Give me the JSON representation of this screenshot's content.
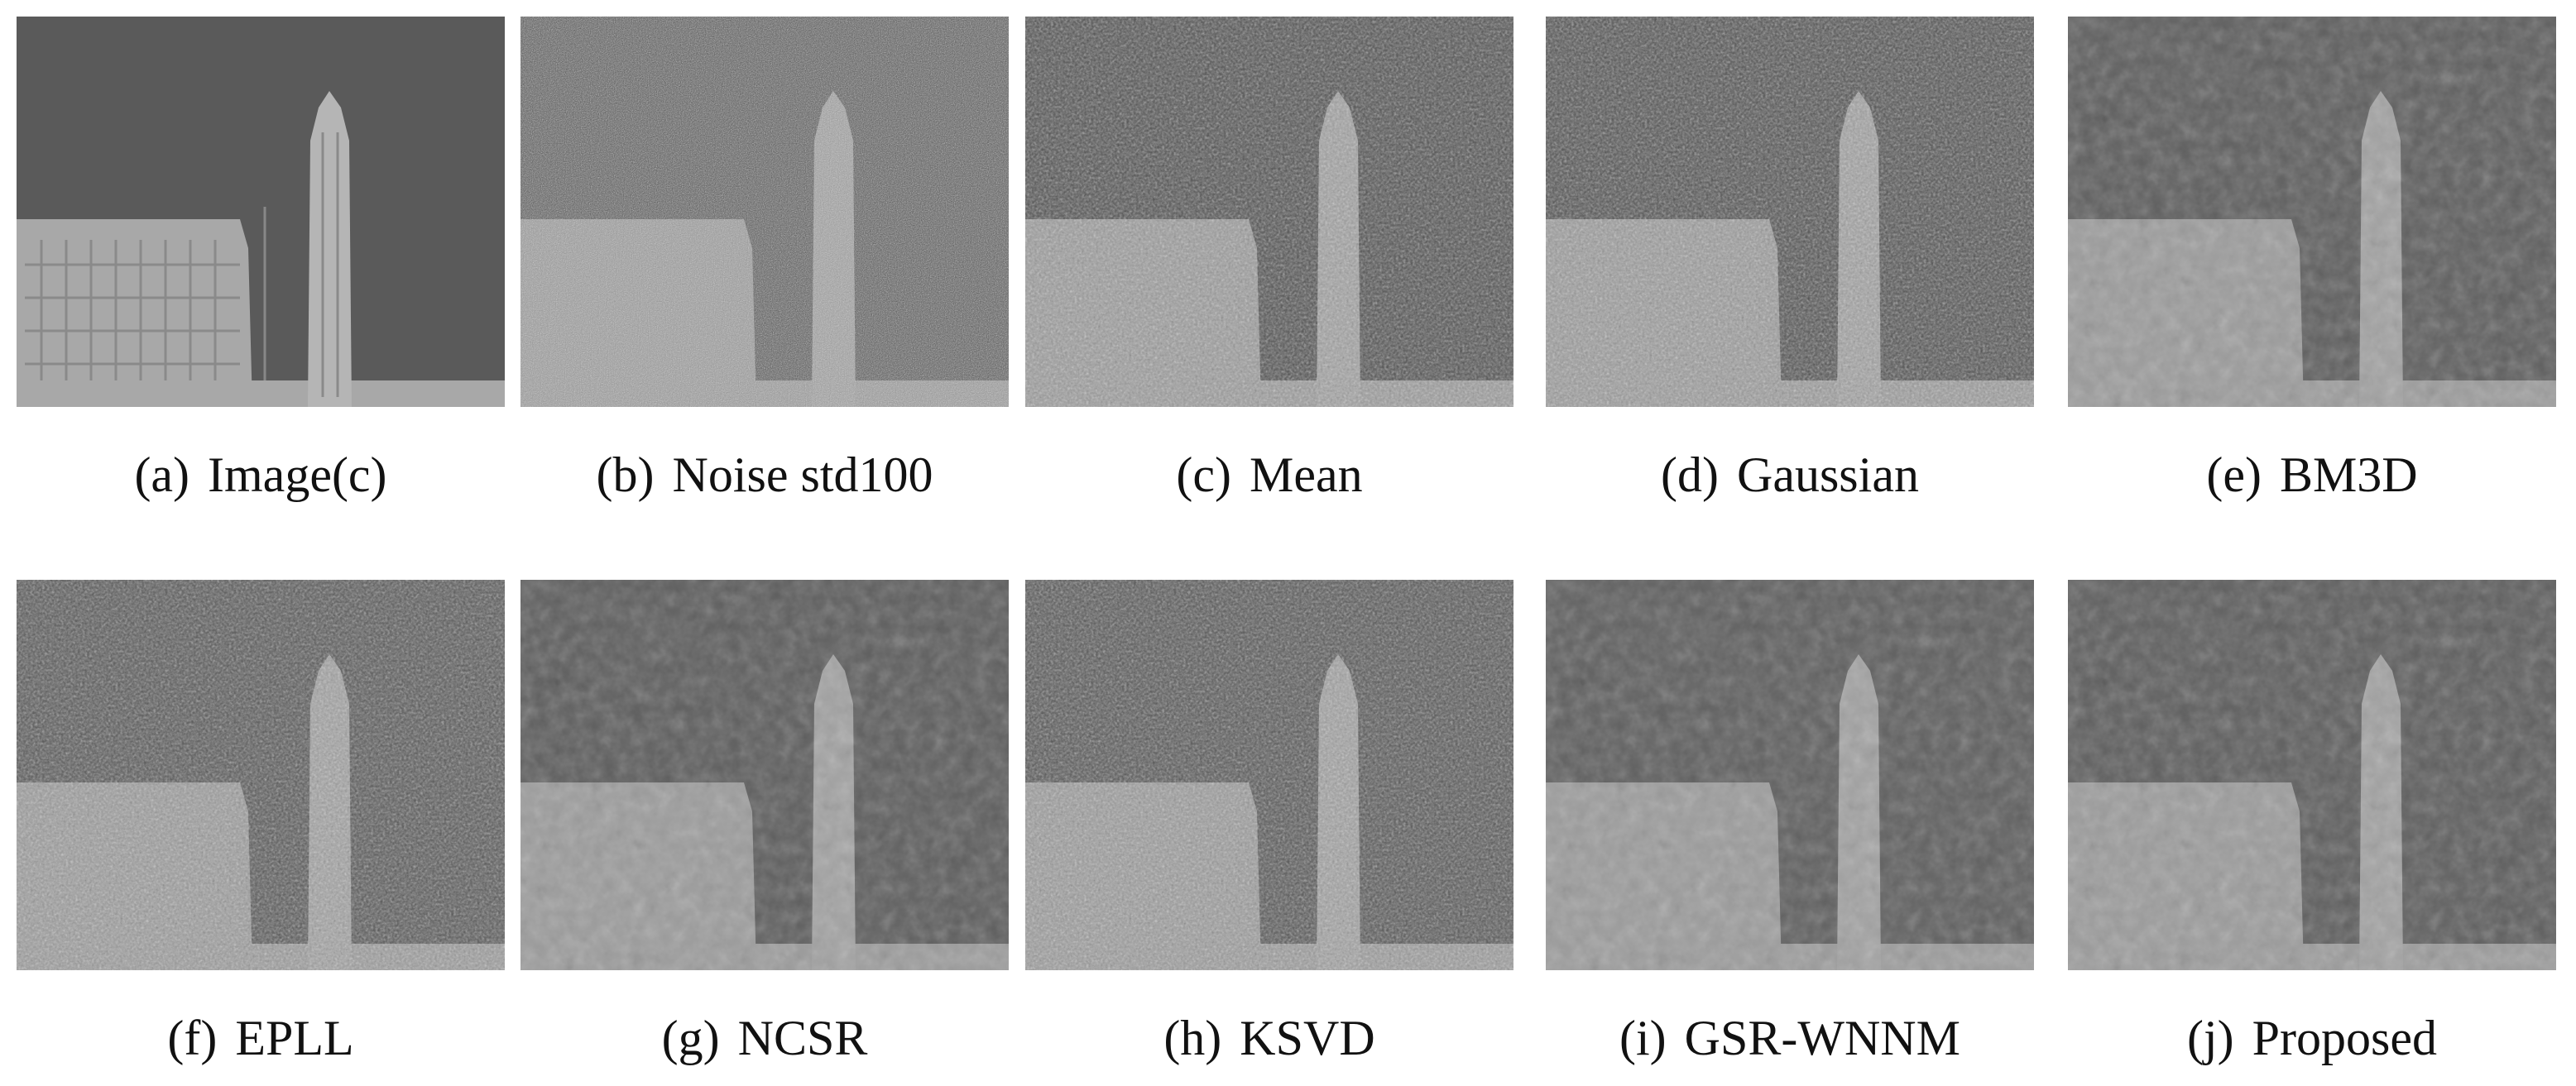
{
  "panels": [
    {
      "label": "(a)",
      "caption": "Image(c)"
    },
    {
      "label": "(b)",
      "caption": "Noise std100"
    },
    {
      "label": "(c)",
      "caption": "Mean"
    },
    {
      "label": "(d)",
      "caption": "Gaussian"
    },
    {
      "label": "(e)",
      "caption": "BM3D"
    },
    {
      "label": "(f)",
      "caption": "EPLL"
    },
    {
      "label": "(g)",
      "caption": "NCSR"
    },
    {
      "label": "(h)",
      "caption": "KSVD"
    },
    {
      "label": "(i)",
      "caption": "GSR-WNNM"
    },
    {
      "label": "(j)",
      "caption": "Proposed"
    }
  ]
}
